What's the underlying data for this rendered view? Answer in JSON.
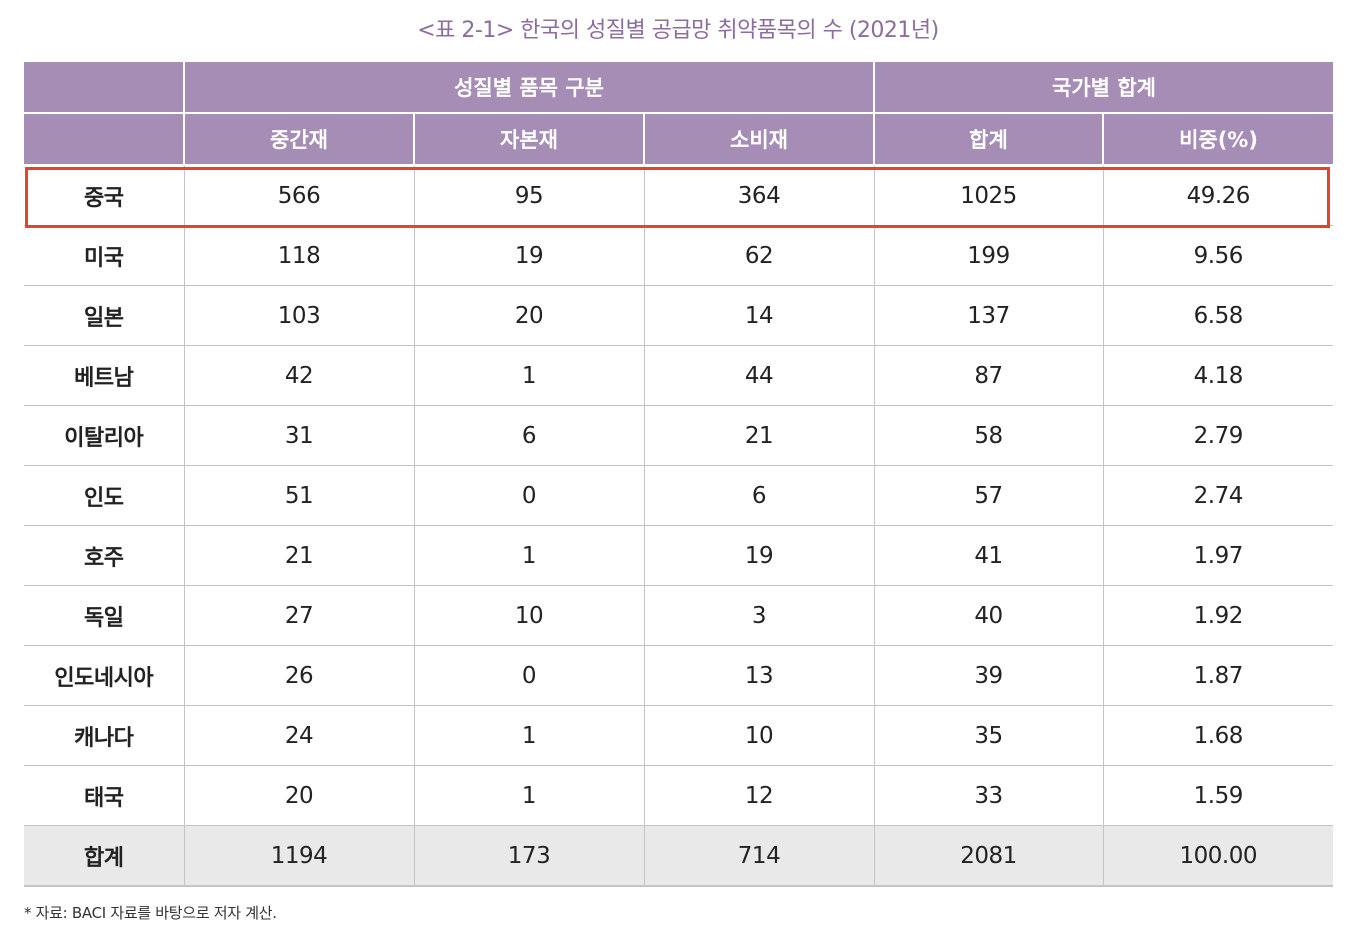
{
  "caption": "<표 2-1> 한국의 성질별 공급망 취약품목의 수 (2021년)",
  "header": {
    "group_by_type": "성질별 품목 구분",
    "group_by_country": "국가별 합계",
    "columns": [
      "중간재",
      "자본재",
      "소비재",
      "합계",
      "비중(%)"
    ]
  },
  "rows": [
    {
      "country": "중국",
      "intermediate": "566",
      "capital": "95",
      "consumer": "364",
      "total": "1025",
      "share": "49.26"
    },
    {
      "country": "미국",
      "intermediate": "118",
      "capital": "19",
      "consumer": "62",
      "total": "199",
      "share": "9.56"
    },
    {
      "country": "일본",
      "intermediate": "103",
      "capital": "20",
      "consumer": "14",
      "total": "137",
      "share": "6.58"
    },
    {
      "country": "베트남",
      "intermediate": "42",
      "capital": "1",
      "consumer": "44",
      "total": "87",
      "share": "4.18"
    },
    {
      "country": "이탈리아",
      "intermediate": "31",
      "capital": "6",
      "consumer": "21",
      "total": "58",
      "share": "2.79"
    },
    {
      "country": "인도",
      "intermediate": "51",
      "capital": "0",
      "consumer": "6",
      "total": "57",
      "share": "2.74"
    },
    {
      "country": "호주",
      "intermediate": "21",
      "capital": "1",
      "consumer": "19",
      "total": "41",
      "share": "1.97"
    },
    {
      "country": "독일",
      "intermediate": "27",
      "capital": "10",
      "consumer": "3",
      "total": "40",
      "share": "1.92"
    },
    {
      "country": "인도네시아",
      "intermediate": "26",
      "capital": "0",
      "consumer": "13",
      "total": "39",
      "share": "1.87"
    },
    {
      "country": "캐나다",
      "intermediate": "24",
      "capital": "1",
      "consumer": "10",
      "total": "35",
      "share": "1.68"
    },
    {
      "country": "태국",
      "intermediate": "20",
      "capital": "1",
      "consumer": "12",
      "total": "33",
      "share": "1.59"
    }
  ],
  "total_row": {
    "country": "합계",
    "intermediate": "1194",
    "capital": "173",
    "consumer": "714",
    "total": "2081",
    "share": "100.00"
  },
  "source": "* 자료: BACI 자료를 바탕으로 저자 계산.",
  "highlight_color": "#e2452a",
  "header_color": "#a58db5"
}
